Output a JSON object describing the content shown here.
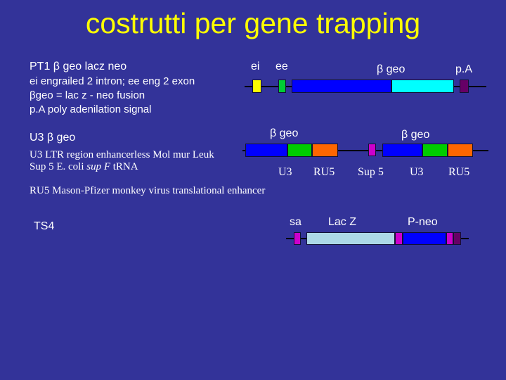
{
  "title": "costrutti per gene trapping",
  "pt1": {
    "label": "PT1 β geo lacz neo",
    "ei_label": "ei",
    "ee_label": "ee",
    "bgeo_label": "β geo",
    "pa_label": "p.A",
    "notes": [
      "ei engrailed 2 intron; ee eng 2 exon",
      "βgeo = lac z - neo fusion",
      "p.A  poly adenilation signal"
    ],
    "segments": [
      {
        "name": "ei",
        "color": "#ffff00"
      },
      {
        "name": "ee",
        "color": "#00cc33"
      },
      {
        "name": "beta-geo-lacz",
        "color": "#0000ff"
      },
      {
        "name": "beta-geo-neo",
        "color": "#00ffff"
      },
      {
        "name": "pA",
        "color": "#660066"
      }
    ]
  },
  "u3": {
    "label": "U3 β geo",
    "notes": [
      "U3 LTR region enhancerless Mol mur Leuk",
      "Sup 5 E. coli sup F tRNA"
    ],
    "bgeo_left_label": "β geo",
    "bgeo_right_label": "β geo",
    "labels": {
      "u3_left": "U3",
      "ru5_left": "RU5",
      "sup5": "Sup 5",
      "u3_right": "U3",
      "ru5_right": "RU5"
    },
    "ru5_note": "RU5 Mason-Pfizer monkey virus translational enhancer",
    "segments": [
      {
        "name": "geo-left-blue",
        "color": "#0000ff"
      },
      {
        "name": "u3-left",
        "color": "#00cc00"
      },
      {
        "name": "ru5-left",
        "color": "#ff6600"
      },
      {
        "name": "sup5",
        "color": "#cc00cc"
      },
      {
        "name": "geo-right-blue",
        "color": "#0000ff"
      },
      {
        "name": "u3-right",
        "color": "#00cc00"
      },
      {
        "name": "ru5-right",
        "color": "#ff6600"
      }
    ]
  },
  "ts4": {
    "label": "TS4",
    "sa_label": "sa",
    "lacz_label": "Lac Z",
    "pneo_label": "P-neo",
    "segments": [
      {
        "name": "sa",
        "color": "#cc00cc"
      },
      {
        "name": "lacz",
        "color": "#add8e6"
      },
      {
        "name": "linker",
        "color": "#cc00cc"
      },
      {
        "name": "p-neo",
        "color": "#0000ff"
      },
      {
        "name": "end-marker",
        "color": "#cc00cc"
      },
      {
        "name": "end-dark",
        "color": "#660066"
      }
    ]
  }
}
